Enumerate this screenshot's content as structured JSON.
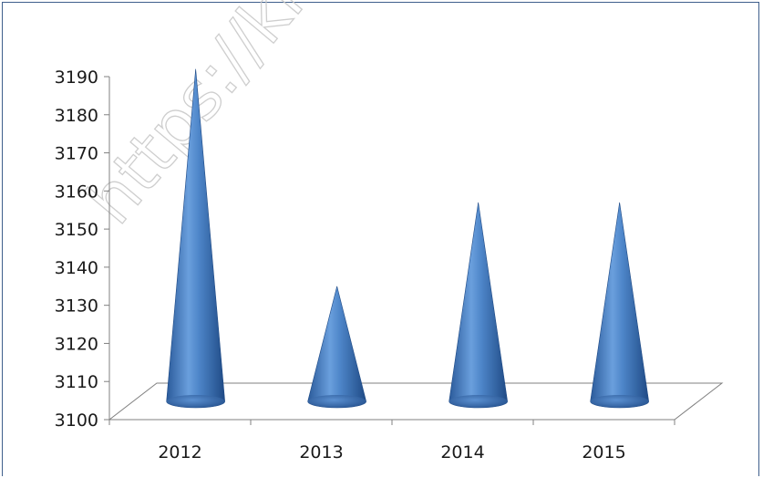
{
  "watermark": "https://kiung",
  "chart_data": {
    "type": "bar",
    "style": "3d-cone",
    "categories": [
      "2012",
      "2013",
      "2014",
      "2015"
    ],
    "values": [
      3192,
      3135,
      3157,
      3157
    ],
    "ylim": [
      3100,
      3190
    ],
    "yticks": [
      3100,
      3110,
      3120,
      3130,
      3140,
      3150,
      3160,
      3170,
      3180,
      3190
    ],
    "title": "",
    "xlabel": "",
    "ylabel": "",
    "legend": "none",
    "grid": false,
    "colors": {
      "cone_dark": "#2a5a9a",
      "cone_mid": "#4e86c9",
      "cone_light": "#a9c9ee",
      "axis": "#808080",
      "frame": "#3f5f8c"
    }
  }
}
